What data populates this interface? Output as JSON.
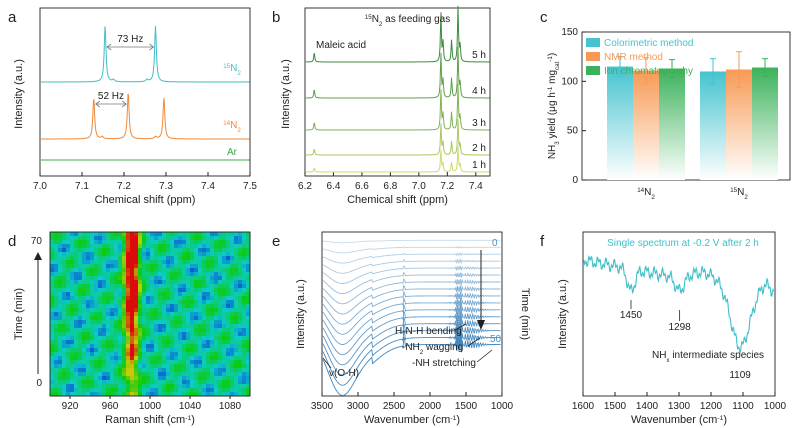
{
  "panels": {
    "a": "a",
    "b": "b",
    "c": "c",
    "d": "d",
    "e": "e",
    "f": "f"
  },
  "colors": {
    "teal": "#3fbfc9",
    "orange": "#f08a3a",
    "green": "#3aa84a",
    "blue": "#4a8fc4",
    "axis": "#222222",
    "fbar_teal": "#45c3cf",
    "fbar_orange": "#f79a55",
    "fbar_green": "#3bb25a"
  },
  "chart_data": [
    {
      "panel": "a",
      "type": "line",
      "xlabel": "Chemical shift (ppm)",
      "ylabel": "Intensity (a.u.)",
      "xlim": [
        7.5,
        7.0
      ],
      "xticks": [
        "7.0",
        "7.1",
        "7.2",
        "7.3",
        "7.4",
        "7.5"
      ],
      "series": [
        {
          "name": "15N2",
          "label_base": "N",
          "label_sup": "15",
          "label_sub": "2",
          "color": "teal",
          "peaks": [
            {
              "x": 7.155,
              "h": 1.0
            },
            {
              "x": 7.275,
              "h": 1.0
            }
          ],
          "annotation": "73 Hz"
        },
        {
          "name": "14N2",
          "label_base": "N",
          "label_sup": "14",
          "label_sub": "2",
          "color": "orange",
          "peaks": [
            {
              "x": 7.128,
              "h": 0.75
            },
            {
              "x": 7.21,
              "h": 0.85
            },
            {
              "x": 7.295,
              "h": 0.75
            }
          ],
          "annotation": "52 Hz"
        },
        {
          "name": "Ar",
          "label": "Ar",
          "color": "green",
          "peaks": []
        }
      ]
    },
    {
      "panel": "b",
      "type": "line",
      "xlabel": "Chemical shift (ppm)",
      "ylabel": "Intensity (a.u.)",
      "xlim": [
        7.5,
        6.2
      ],
      "xticks": [
        "6.2",
        "6.4",
        "6.6",
        "6.8",
        "7.0",
        "7.2",
        "7.4"
      ],
      "title_sup": "15",
      "title_rest": "N",
      "title_sub": "2",
      "title_tail": " as feeding gas",
      "annotation": "Maleic acid",
      "series": [
        {
          "name": "5 h",
          "label": "5 h",
          "color": "#3d8a3d"
        },
        {
          "name": "4 h",
          "label": "4 h",
          "color": "#5ea04a"
        },
        {
          "name": "3 h",
          "label": "3 h",
          "color": "#7fb452"
        },
        {
          "name": "2 h",
          "label": "2 h",
          "color": "#a8c860"
        },
        {
          "name": "1 h",
          "label": "1 h",
          "color": "#d4d86e"
        }
      ]
    },
    {
      "panel": "c",
      "type": "bar",
      "ylabel_pre": "NH",
      "ylabel_sub": "3",
      "ylabel_mid": " yield (μg h",
      "ylabel_sup": "-1",
      "ylabel_mid2": " mg",
      "ylabel_sub2": "cat",
      "ylabel_sup2": "-1",
      "ylabel_end": ")",
      "ylim": [
        0,
        150
      ],
      "yticks": [
        "0",
        "50",
        "100",
        "150"
      ],
      "categories": [
        {
          "sup": "14",
          "base": "N",
          "sub": "2"
        },
        {
          "sup": "15",
          "base": "N",
          "sub": "2"
        }
      ],
      "series": [
        {
          "name": "Colorimetric method",
          "color": "fbar_teal",
          "values": [
            115,
            110
          ],
          "err": [
            10,
            13
          ]
        },
        {
          "name": "NMR method",
          "color": "fbar_orange",
          "values": [
            111,
            112
          ],
          "err": [
            13,
            18
          ]
        },
        {
          "name": "Ion chromatography",
          "color": "fbar_green",
          "values": [
            113,
            114
          ],
          "err": [
            9,
            9
          ]
        }
      ]
    },
    {
      "panel": "d",
      "type": "heatmap",
      "xlabel_pre": "Raman shift (cm",
      "xlabel_sup": "-1",
      "xlabel_end": ")",
      "ylabel": "Time (min)",
      "xticks": [
        "920",
        "960",
        "1000",
        "1040",
        "1080"
      ],
      "yticks": [
        "0",
        "70"
      ],
      "xlim": [
        900,
        1100
      ],
      "ylim": [
        0,
        70
      ],
      "peak_x": 982
    },
    {
      "panel": "e",
      "type": "line",
      "xlabel_pre": "Wavenumber (cm",
      "xlabel_sup": "-1",
      "xlabel_end": ")",
      "ylabel": "Intensity (a.u.)",
      "ylabel2": "Time (min)",
      "xticks": [
        "3500",
        "3000",
        "2500",
        "2000",
        "1500",
        "1000"
      ],
      "time_labels": [
        "0",
        "50"
      ],
      "annotations": [
        "H-N-H bending",
        "-NH",
        "2",
        " wagging",
        "-NH stretching",
        "ν(O-H)"
      ]
    },
    {
      "panel": "f",
      "type": "line",
      "xlabel_pre": "Wavenumber (cm",
      "xlabel_sup": "-1",
      "xlabel_end": ")",
      "ylabel": "Intensity (a.u.)",
      "title": "Single spectrum at -0.2 V after 2 h",
      "xticks": [
        "1600",
        "1500",
        "1400",
        "1300",
        "1200",
        "1100",
        "1000"
      ],
      "peak_labels": [
        "1450",
        "1298",
        "1109"
      ],
      "species_pre": "NH",
      "species_sub": "x",
      "species_end": " intermediate species"
    }
  ]
}
